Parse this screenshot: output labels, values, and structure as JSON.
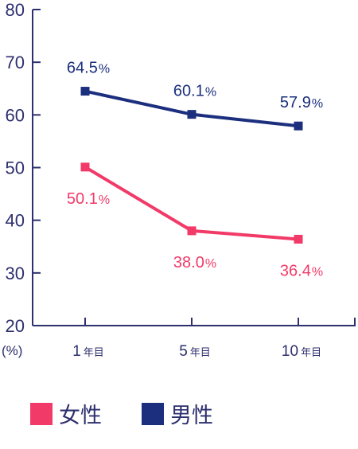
{
  "chart_data": {
    "type": "line",
    "categories": [
      {
        "num": "1",
        "suffix": "年目"
      },
      {
        "num": "5",
        "suffix": "年目"
      },
      {
        "num": "10",
        "suffix": "年目"
      }
    ],
    "series": [
      {
        "name": "男性",
        "color": "#1b2f7e",
        "values": [
          64.5,
          60.1,
          57.9
        ],
        "labels": [
          "64.5",
          "60.1",
          "57.9"
        ],
        "label_position": "above"
      },
      {
        "name": "女性",
        "color": "#f23a68",
        "values": [
          50.1,
          38.0,
          36.4
        ],
        "labels": [
          "50.1",
          "38.0",
          "36.4"
        ],
        "label_position": "below"
      }
    ],
    "ylabel": "(%)",
    "ylim": [
      20,
      80
    ],
    "yticks": [
      20,
      30,
      40,
      50,
      60,
      70,
      80
    ],
    "percent_suffix": "%",
    "legend_position": "bottom",
    "grid": false
  },
  "legend": [
    {
      "label": "女性",
      "color": "#f23a68"
    },
    {
      "label": "男性",
      "color": "#1b2f7e"
    }
  ]
}
